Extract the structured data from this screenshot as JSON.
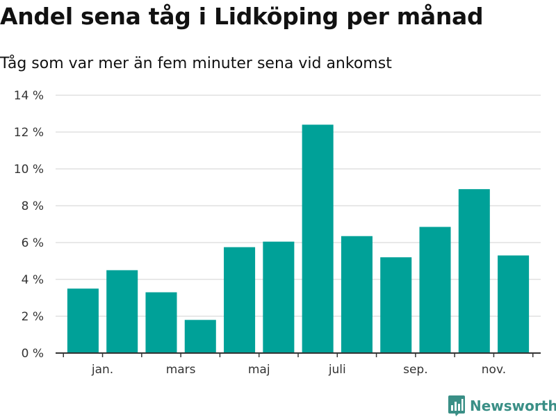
{
  "colors": {
    "bar": "#00a198",
    "grid": "#d9d9d9",
    "axis": "#333333",
    "brand": "#3a8f86"
  },
  "chart_data": {
    "type": "bar",
    "title": "Andel sena tåg i Lidköping per månad",
    "subtitle": "Tåg som var mer än fem minuter sena vid ankomst",
    "xlabel": "",
    "ylabel": "",
    "ylim": [
      0,
      14
    ],
    "y_ticks": [
      {
        "value": 0,
        "label": "0 %"
      },
      {
        "value": 2,
        "label": "2 %"
      },
      {
        "value": 4,
        "label": "4 %"
      },
      {
        "value": 6,
        "label": "6 %"
      },
      {
        "value": 8,
        "label": "8 %"
      },
      {
        "value": 10,
        "label": "10 %"
      },
      {
        "value": 12,
        "label": "12 %"
      },
      {
        "value": 14,
        "label": "14 %"
      }
    ],
    "x_range": [
      -0.7,
      11.7
    ],
    "values": [
      3.5,
      4.5,
      3.3,
      1.8,
      5.75,
      6.05,
      12.4,
      6.35,
      5.2,
      6.85,
      8.9,
      5.3
    ],
    "x_ticks": [
      {
        "index": 1.5,
        "label": "jan."
      },
      {
        "index": 3.5,
        "label": "mars"
      },
      {
        "index": 5.5,
        "label": "maj"
      },
      {
        "index": 7.5,
        "label": "juli"
      },
      {
        "index": 9.5,
        "label": "sep."
      },
      {
        "index": 11.5,
        "label": "nov."
      }
    ]
  },
  "brand": {
    "name": "Newsworthy",
    "logo_icon": "bar-chart-speech-bubble-icon"
  }
}
